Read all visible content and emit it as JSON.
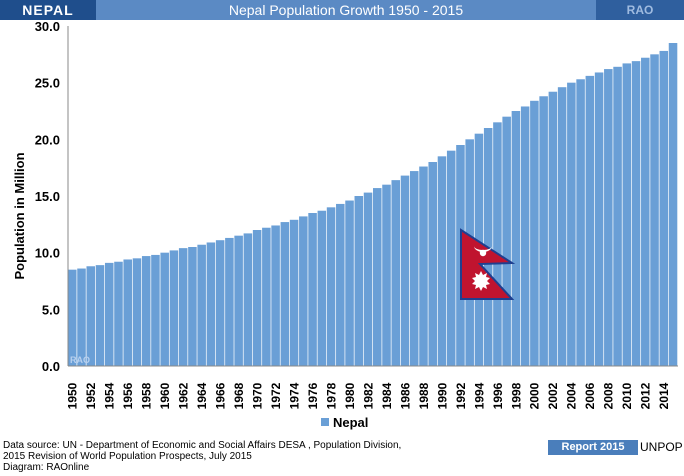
{
  "header": {
    "country": "NEPAL",
    "title": "Nepal Population Growth 1950 - 2015",
    "brand": "RAO"
  },
  "chart_data": {
    "type": "bar",
    "title": "Nepal Population Growth 1950 - 2015",
    "xlabel": "",
    "ylabel": "Population in Million",
    "ylim": [
      0,
      30
    ],
    "yticks": [
      "0.0",
      "5.0",
      "10.0",
      "15.0",
      "20.0",
      "25.0",
      "30.0"
    ],
    "ytick_values": [
      0,
      5,
      10,
      15,
      20,
      25,
      30
    ],
    "categories": [
      1950,
      1951,
      1952,
      1953,
      1954,
      1955,
      1956,
      1957,
      1958,
      1959,
      1960,
      1961,
      1962,
      1963,
      1964,
      1965,
      1966,
      1967,
      1968,
      1969,
      1970,
      1971,
      1972,
      1973,
      1974,
      1975,
      1976,
      1977,
      1978,
      1979,
      1980,
      1981,
      1982,
      1983,
      1984,
      1985,
      1986,
      1987,
      1988,
      1989,
      1990,
      1991,
      1992,
      1993,
      1994,
      1995,
      1996,
      1997,
      1998,
      1999,
      2000,
      2001,
      2002,
      2003,
      2004,
      2005,
      2006,
      2007,
      2008,
      2009,
      2010,
      2011,
      2012,
      2013,
      2014,
      2015
    ],
    "xtick_labels": [
      "1950",
      "1952",
      "1954",
      "1956",
      "1958",
      "1960",
      "1962",
      "1964",
      "1966",
      "1968",
      "1970",
      "1972",
      "1974",
      "1976",
      "1978",
      "1980",
      "1982",
      "1984",
      "1986",
      "1988",
      "1990",
      "1992",
      "1994",
      "1996",
      "1998",
      "2000",
      "2002",
      "2004",
      "2006",
      "2008",
      "2010",
      "2012",
      "2014"
    ],
    "series": [
      {
        "name": "Nepal",
        "color": "#6a9fd6",
        "values": [
          8.5,
          8.6,
          8.8,
          8.9,
          9.1,
          9.2,
          9.4,
          9.5,
          9.7,
          9.8,
          10.0,
          10.2,
          10.4,
          10.5,
          10.7,
          10.9,
          11.1,
          11.3,
          11.5,
          11.7,
          12.0,
          12.2,
          12.4,
          12.7,
          12.9,
          13.2,
          13.5,
          13.7,
          14.0,
          14.3,
          14.6,
          15.0,
          15.3,
          15.7,
          16.0,
          16.4,
          16.8,
          17.2,
          17.6,
          18.0,
          18.5,
          19.0,
          19.5,
          20.0,
          20.5,
          21.0,
          21.5,
          22.0,
          22.5,
          22.9,
          23.4,
          23.8,
          24.2,
          24.6,
          25.0,
          25.3,
          25.6,
          25.9,
          26.2,
          26.4,
          26.7,
          26.9,
          27.2,
          27.5,
          27.8,
          28.5
        ]
      }
    ],
    "legend": "bottom-center",
    "grid": false,
    "watermark": "RAO"
  },
  "footer": {
    "source_line1": "Data source: UN -  Department of Economic and Social Affairs DESA , Population Division,",
    "source_line2": "2015 Revision of World Population Prospects, July 2015",
    "source_line3": "Diagram: RAOnline",
    "badge": "Report 2015",
    "org": "UNPOP"
  },
  "colors": {
    "header_bg": "#5b8ac4",
    "header_left_bg": "#1f4e8c",
    "bar": "#6a9fd6",
    "flag_red": "#c0142f",
    "flag_border": "#1f3f8f"
  }
}
